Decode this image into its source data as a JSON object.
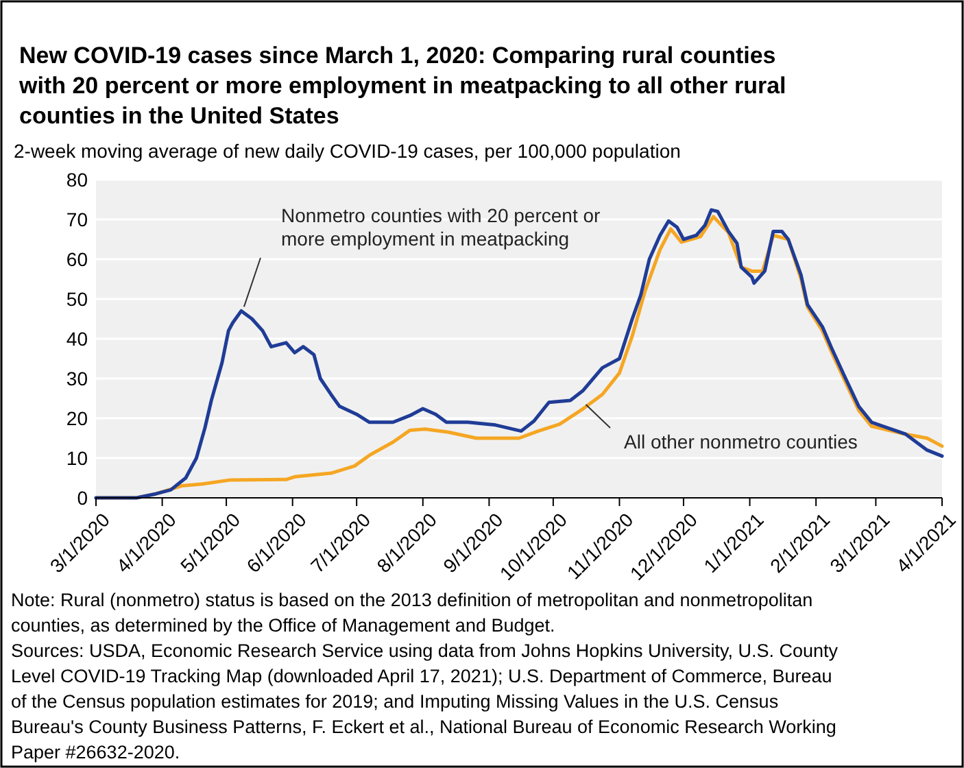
{
  "chart_data": {
    "type": "line",
    "title": "New COVID-19 cases since March 1, 2020: Comparing rural counties with 20 percent or more employment in meatpacking to all other rural counties in the United States",
    "subtitle": "2-week moving average of new daily COVID-19 cases, per 100,000 population",
    "xlim": [
      "2020-03-01",
      "2021-04-01"
    ],
    "xticks": [
      {
        "value": "2020-03-01",
        "label": "3/1/2020"
      },
      {
        "value": "2020-04-01",
        "label": "4/1/2020"
      },
      {
        "value": "2020-05-01",
        "label": "5/1/2020"
      },
      {
        "value": "2020-06-01",
        "label": "6/1/2020"
      },
      {
        "value": "2020-07-01",
        "label": "7/1/2020"
      },
      {
        "value": "2020-08-01",
        "label": "8/1/2020"
      },
      {
        "value": "2020-09-01",
        "label": "9/1/2020"
      },
      {
        "value": "2020-10-01",
        "label": "10/1/2020"
      },
      {
        "value": "2020-11-01",
        "label": "11/1/2020"
      },
      {
        "value": "2020-12-01",
        "label": "12/1/2020"
      },
      {
        "value": "2021-01-01",
        "label": "1/1/2021"
      },
      {
        "value": "2021-02-01",
        "label": "2/1/2021"
      },
      {
        "value": "2021-03-01",
        "label": "3/1/2021"
      },
      {
        "value": "2021-04-01",
        "label": "4/1/2021"
      }
    ],
    "ylim": [
      0,
      80
    ],
    "yticks": [
      0,
      10,
      20,
      30,
      40,
      50,
      60,
      70,
      80
    ],
    "grid": "y",
    "marker": "none",
    "line_style": "solid",
    "series": [
      {
        "name": "All other nonmetro counties",
        "color": "#f5a623",
        "x": [
          "2020-03-01",
          "2020-03-20",
          "2020-03-29",
          "2020-04-10",
          "2020-04-20",
          "2020-05-03",
          "2020-05-29",
          "2020-06-02",
          "2020-06-19",
          "2020-06-30",
          "2020-07-07",
          "2020-07-18",
          "2020-07-26",
          "2020-08-02",
          "2020-08-13",
          "2020-08-26",
          "2020-09-15",
          "2020-09-24",
          "2020-10-04",
          "2020-10-15",
          "2020-10-24",
          "2020-11-01",
          "2020-11-07",
          "2020-11-13",
          "2020-11-20",
          "2020-11-25",
          "2020-11-30",
          "2020-12-09",
          "2020-12-15",
          "2020-12-22",
          "2020-12-28",
          "2021-01-02",
          "2021-01-07",
          "2021-01-12",
          "2021-01-19",
          "2021-01-25",
          "2021-01-28",
          "2021-02-04",
          "2021-02-08",
          "2021-02-14",
          "2021-02-21",
          "2021-02-27",
          "2021-03-15",
          "2021-03-25",
          "2021-04-01"
        ],
        "values": [
          0,
          0,
          1,
          3,
          3.5,
          4.5,
          4.6,
          5.3,
          6.2,
          8,
          10.7,
          14,
          17,
          17.3,
          16.5,
          15,
          15,
          16.8,
          18.5,
          22.4,
          26,
          31.4,
          40.7,
          52,
          62.4,
          67.6,
          64.3,
          65.7,
          70.7,
          66.7,
          58,
          57,
          57,
          66,
          65,
          55,
          48,
          42,
          37,
          30,
          22,
          18,
          16,
          15,
          13
        ]
      },
      {
        "name": "Nonmetro counties with 20 percent or more employment in meatpacking",
        "color": "#1f3c96",
        "x": [
          "2020-03-01",
          "2020-03-20",
          "2020-03-29",
          "2020-04-05",
          "2020-04-12",
          "2020-04-17",
          "2020-04-21",
          "2020-04-24",
          "2020-04-29",
          "2020-05-02",
          "2020-05-04",
          "2020-05-08",
          "2020-05-13",
          "2020-05-18",
          "2020-05-22",
          "2020-05-29",
          "2020-06-02",
          "2020-06-06",
          "2020-06-11",
          "2020-06-14",
          "2020-06-19",
          "2020-06-23",
          "2020-07-01",
          "2020-07-07",
          "2020-07-18",
          "2020-07-26",
          "2020-08-01",
          "2020-08-07",
          "2020-08-12",
          "2020-08-22",
          "2020-09-04",
          "2020-09-16",
          "2020-09-22",
          "2020-09-29",
          "2020-10-09",
          "2020-10-15",
          "2020-10-24",
          "2020-11-01",
          "2020-11-07",
          "2020-11-11",
          "2020-11-15",
          "2020-11-20",
          "2020-11-24",
          "2020-11-28",
          "2020-12-01",
          "2020-12-07",
          "2020-12-11",
          "2020-12-14",
          "2020-12-17",
          "2020-12-22",
          "2020-12-26",
          "2020-12-28",
          "2021-01-02",
          "2021-01-03",
          "2021-01-08",
          "2021-01-12",
          "2021-01-16",
          "2021-01-19",
          "2021-01-25",
          "2021-01-28",
          "2021-02-04",
          "2021-02-08",
          "2021-02-14",
          "2021-02-21",
          "2021-02-27",
          "2021-03-15",
          "2021-03-25",
          "2021-04-01"
        ],
        "values": [
          0,
          0,
          1,
          2,
          5,
          10,
          17.6,
          24.5,
          34,
          42,
          44,
          47,
          45,
          42,
          38,
          39,
          36.5,
          38,
          36,
          30,
          26,
          23,
          21,
          19,
          19,
          20.7,
          22.4,
          21,
          19,
          19,
          18.3,
          16.8,
          19.3,
          24,
          24.5,
          27,
          32.7,
          35,
          45,
          51,
          60,
          66,
          69.6,
          68,
          65,
          66,
          68.5,
          72.4,
          72,
          67,
          64,
          58,
          55.5,
          54,
          57,
          67,
          67,
          65,
          56,
          48.6,
          43,
          38,
          31,
          23,
          19,
          16,
          12,
          10.5
        ]
      }
    ],
    "annotations": [
      "Note: Rural (nonmetro) status is based on the 2013 definition of metropolitan and nonmetropolitan counties, as determined by the Office of Management and Budget.",
      "Sources: USDA, Economic Research Service using data from Johns Hopkins University, U.S. County Level COVID-19 Tracking Map (downloaded April 17, 2021); U.S. Department of Commerce, Bureau of the Census population estimates for 2019; and Imputing Missing Values in the U.S. Census Bureau's County Business Patterns, F. Eckert et al., National Bureau of Economic Research Working Paper #26632-2020."
    ]
  }
}
